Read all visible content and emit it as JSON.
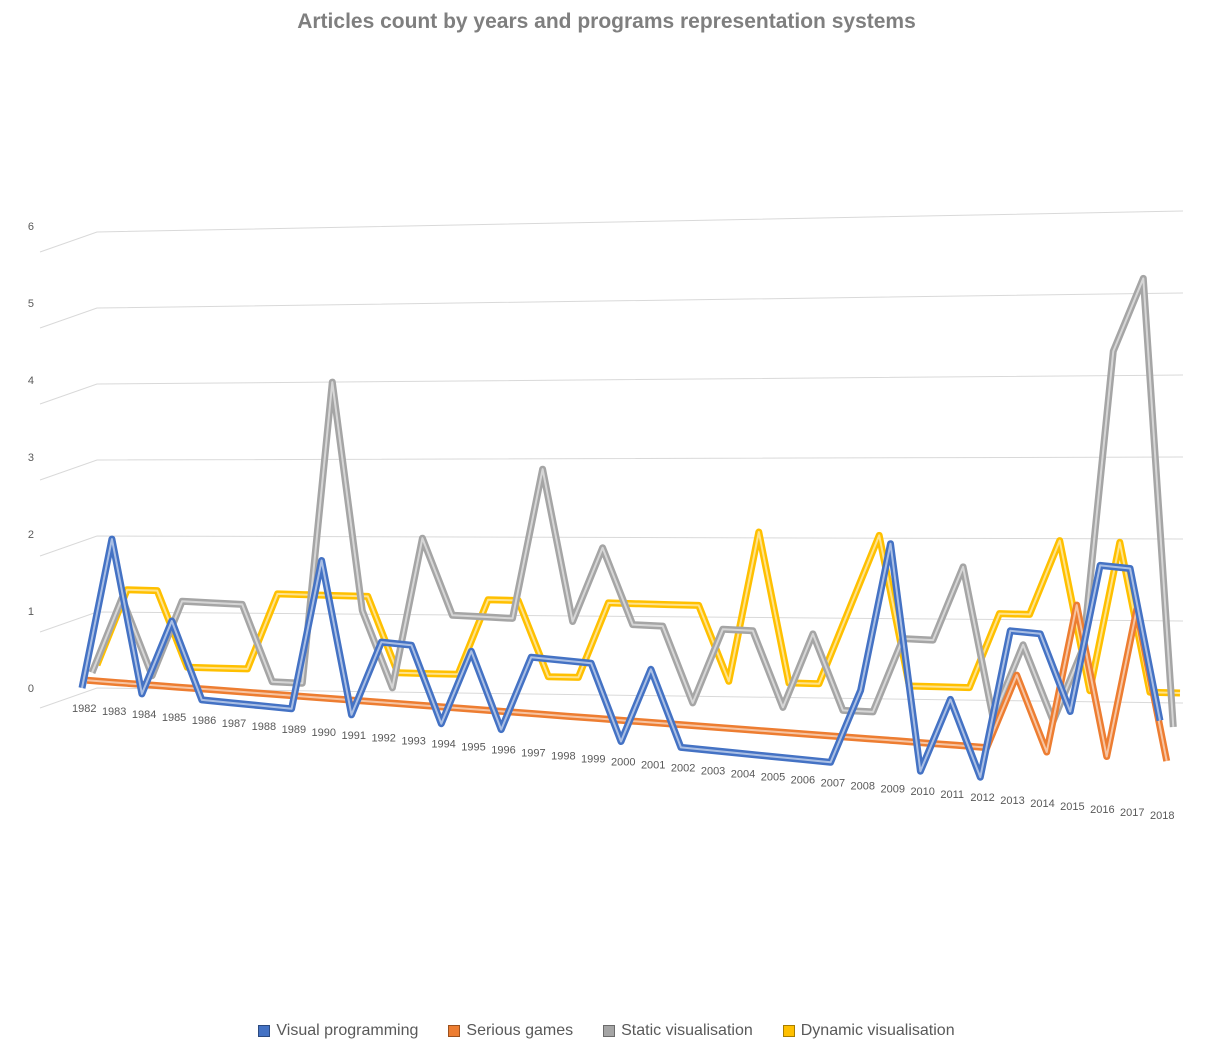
{
  "chart_data": {
    "type": "line",
    "title": "Articles count by years and programs representation systems",
    "xlabel": "",
    "ylabel": "",
    "ylim": [
      0,
      6
    ],
    "yticks": [
      "0",
      "1",
      "2",
      "3",
      "4",
      "5",
      "6"
    ],
    "grid": true,
    "legend_position": "bottom",
    "categories": [
      "1982",
      "1983",
      "1984",
      "1985",
      "1986",
      "1987",
      "1988",
      "1989",
      "1990",
      "1991",
      "1992",
      "1993",
      "1994",
      "1995",
      "1996",
      "1997",
      "1998",
      "1999",
      "2000",
      "2001",
      "2002",
      "2003",
      "2004",
      "2005",
      "2006",
      "2007",
      "2008",
      "2009",
      "2010",
      "2011",
      "2012",
      "2013",
      "2014",
      "2015",
      "2016",
      "2017",
      "2018"
    ],
    "series": [
      {
        "name": "Visual programming",
        "color": "#4472c4",
        "values": [
          0,
          2,
          0,
          1,
          0,
          0,
          0,
          0,
          2,
          0,
          1,
          1,
          0,
          1,
          0,
          1,
          1,
          1,
          0,
          1,
          0,
          0,
          0,
          0,
          0,
          0,
          1,
          3,
          0,
          1,
          0,
          2,
          2,
          1,
          3,
          3,
          1
        ]
      },
      {
        "name": "Serious games",
        "color": "#ed7d31",
        "values": [
          0,
          0,
          0,
          0,
          0,
          0,
          0,
          0,
          0,
          0,
          0,
          0,
          0,
          0,
          0,
          0,
          0,
          0,
          0,
          0,
          0,
          0,
          0,
          0,
          0,
          0,
          0,
          0,
          0,
          0,
          0,
          1,
          0,
          2,
          0,
          2,
          0
        ]
      },
      {
        "name": "Static visualisation",
        "color": "#a5a5a5",
        "values": [
          0,
          1,
          0,
          1,
          1,
          1,
          0,
          0,
          4,
          1,
          0,
          2,
          1,
          1,
          1,
          3,
          1,
          2,
          1,
          1,
          0,
          1,
          1,
          0,
          1,
          0,
          0,
          1,
          1,
          2,
          0,
          1,
          0,
          1,
          5,
          6,
          0
        ]
      },
      {
        "name": "Dynamic visualisation",
        "color": "#ffc000",
        "values": [
          0,
          1,
          1,
          0,
          0,
          0,
          1,
          1,
          1,
          1,
          0,
          0,
          0,
          1,
          1,
          0,
          0,
          1,
          1,
          1,
          1,
          0,
          2,
          0,
          0,
          1,
          2,
          0,
          0,
          0,
          1,
          1,
          2,
          0,
          2,
          0,
          0
        ]
      }
    ]
  }
}
